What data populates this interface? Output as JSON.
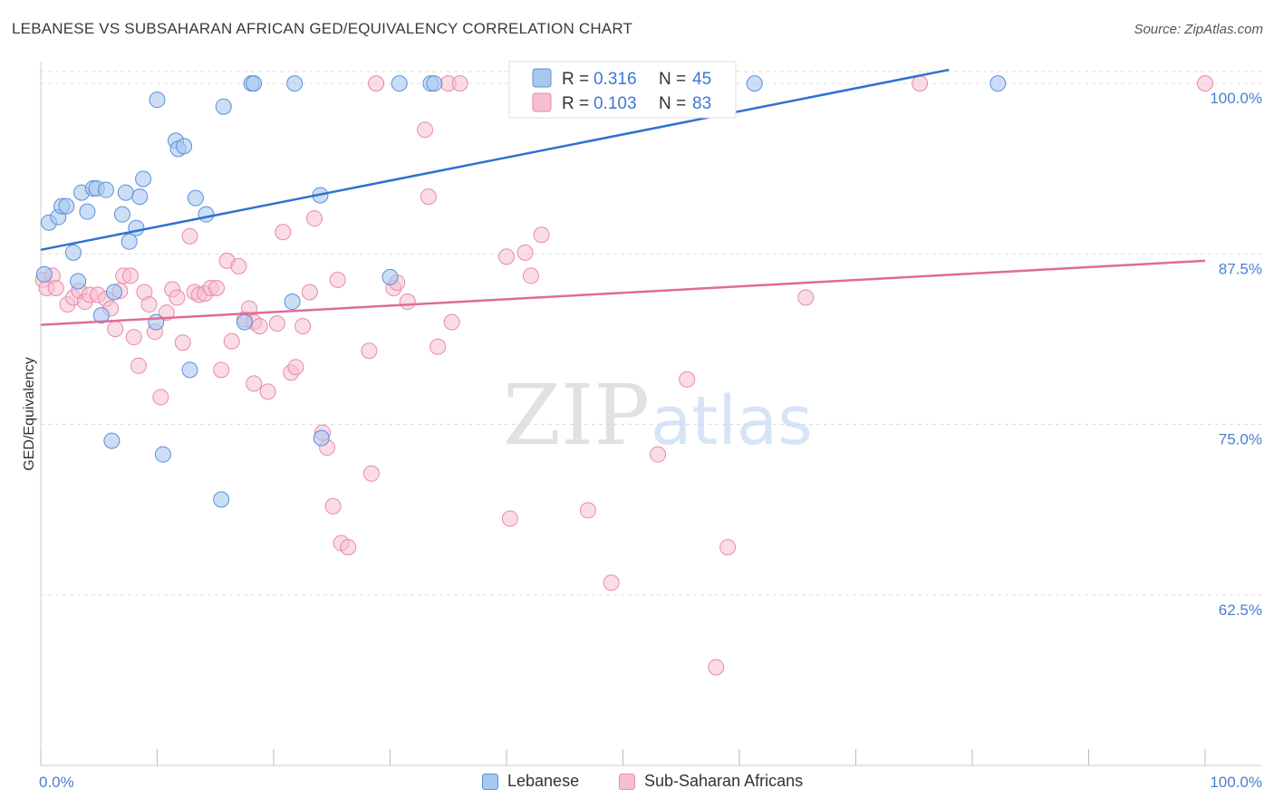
{
  "title": "LEBANESE VS SUBSAHARAN AFRICAN GED/EQUIVALENCY CORRELATION CHART",
  "source": "Source: ZipAtlas.com",
  "watermark": {
    "zip": "ZIP",
    "atlas": "atlas"
  },
  "colors": {
    "blue_fill": "#a9c8f0",
    "blue_stroke": "#5b8fd8",
    "blue_line": "#2f72d1",
    "pink_fill": "#f6bfd1",
    "pink_stroke": "#e88aa9",
    "pink_line": "#e06b97",
    "axis_label": "#4a7fd0",
    "grid": "#dddddd"
  },
  "legend_stats": [
    {
      "r_label": "R =",
      "r_value": "0.316",
      "n_label": "N =",
      "n_value": "45"
    },
    {
      "r_label": "R =",
      "r_value": "0.103",
      "n_label": "N =",
      "n_value": "83"
    }
  ],
  "chart_data": {
    "type": "scatter",
    "title": "LEBANESE VS SUBSAHARAN AFRICAN GED/EQUIVALENCY CORRELATION CHART",
    "xlabel": "",
    "ylabel": "GED/Equivalency",
    "xlim": [
      0,
      100
    ],
    "ylim": [
      50,
      102
    ],
    "x_tick_labels": [
      "0.0%",
      "100.0%"
    ],
    "y_ticks": [
      62.5,
      75.0,
      87.5,
      100.0
    ],
    "y_tick_labels": [
      "62.5%",
      "75.0%",
      "87.5%",
      "100.0%"
    ],
    "grid": "horizontal dashed",
    "legend_position": "top-center",
    "series": [
      {
        "name": "Lebanese",
        "color": "#a9c8f0",
        "trend": {
          "x": [
            0,
            78
          ],
          "y": [
            87.8,
            101
          ]
        },
        "points": [
          [
            0.3,
            86.0
          ],
          [
            0.7,
            89.8
          ],
          [
            1.5,
            90.2
          ],
          [
            1.8,
            91.0
          ],
          [
            2.2,
            91.0
          ],
          [
            2.8,
            87.6
          ],
          [
            3.2,
            85.5
          ],
          [
            3.5,
            92.0
          ],
          [
            4.0,
            90.6
          ],
          [
            4.5,
            92.3
          ],
          [
            4.8,
            92.3
          ],
          [
            5.6,
            92.2
          ],
          [
            5.2,
            83.0
          ],
          [
            6.3,
            84.7
          ],
          [
            7.0,
            90.4
          ],
          [
            7.3,
            92.0
          ],
          [
            7.6,
            88.4
          ],
          [
            8.2,
            89.4
          ],
          [
            8.5,
            91.7
          ],
          [
            8.8,
            93.0
          ],
          [
            9.9,
            82.5
          ],
          [
            10.0,
            98.8
          ],
          [
            10.5,
            72.8
          ],
          [
            11.6,
            95.8
          ],
          [
            11.8,
            95.2
          ],
          [
            12.3,
            95.4
          ],
          [
            12.8,
            79.0
          ],
          [
            13.3,
            91.6
          ],
          [
            14.2,
            90.4
          ],
          [
            15.5,
            69.5
          ],
          [
            15.7,
            98.3
          ],
          [
            17.5,
            82.5
          ],
          [
            18.1,
            100.0
          ],
          [
            18.3,
            100.0
          ],
          [
            21.6,
            84.0
          ],
          [
            21.8,
            100.0
          ],
          [
            24.0,
            91.8
          ],
          [
            24.1,
            74.0
          ],
          [
            30.0,
            85.8
          ],
          [
            30.8,
            100.0
          ],
          [
            33.5,
            100.0
          ],
          [
            33.8,
            100.0
          ],
          [
            6.1,
            73.8
          ],
          [
            61.3,
            100.0
          ],
          [
            82.2,
            100.0
          ]
        ]
      },
      {
        "name": "Sub-Saharan Africans",
        "color": "#f6bfd1",
        "trend": {
          "x": [
            0,
            100
          ],
          "y": [
            82.3,
            87.0
          ]
        },
        "points": [
          [
            0.2,
            85.6
          ],
          [
            0.5,
            85.0
          ],
          [
            1.0,
            85.9
          ],
          [
            1.3,
            85.0
          ],
          [
            2.3,
            83.8
          ],
          [
            2.8,
            84.3
          ],
          [
            3.3,
            84.8
          ],
          [
            3.8,
            84.0
          ],
          [
            4.2,
            84.5
          ],
          [
            4.9,
            84.5
          ],
          [
            5.6,
            84.2
          ],
          [
            6.0,
            83.5
          ],
          [
            6.4,
            82.0
          ],
          [
            6.8,
            84.8
          ],
          [
            7.1,
            85.9
          ],
          [
            7.7,
            85.9
          ],
          [
            8.0,
            81.4
          ],
          [
            8.4,
            79.3
          ],
          [
            8.9,
            84.7
          ],
          [
            9.3,
            83.8
          ],
          [
            9.8,
            81.8
          ],
          [
            10.3,
            77.0
          ],
          [
            10.8,
            83.2
          ],
          [
            11.3,
            84.9
          ],
          [
            11.7,
            84.3
          ],
          [
            12.2,
            81.0
          ],
          [
            12.8,
            88.8
          ],
          [
            13.2,
            84.7
          ],
          [
            13.6,
            84.5
          ],
          [
            14.1,
            84.6
          ],
          [
            14.6,
            85.0
          ],
          [
            15.1,
            85.0
          ],
          [
            15.5,
            79.0
          ],
          [
            16.0,
            87.0
          ],
          [
            16.4,
            81.1
          ],
          [
            17.0,
            86.6
          ],
          [
            17.5,
            82.7
          ],
          [
            17.9,
            83.5
          ],
          [
            18.3,
            82.5
          ],
          [
            18.8,
            82.2
          ],
          [
            18.3,
            78.0
          ],
          [
            19.5,
            77.4
          ],
          [
            20.3,
            82.4
          ],
          [
            20.8,
            89.1
          ],
          [
            21.5,
            78.8
          ],
          [
            21.9,
            79.2
          ],
          [
            22.5,
            82.2
          ],
          [
            23.1,
            84.7
          ],
          [
            23.5,
            90.1
          ],
          [
            24.2,
            74.4
          ],
          [
            24.6,
            73.3
          ],
          [
            25.1,
            69.0
          ],
          [
            25.5,
            85.6
          ],
          [
            25.8,
            66.3
          ],
          [
            26.4,
            66.0
          ],
          [
            28.2,
            80.4
          ],
          [
            28.4,
            71.4
          ],
          [
            28.8,
            100.0
          ],
          [
            30.3,
            85.0
          ],
          [
            30.6,
            85.4
          ],
          [
            31.5,
            84.0
          ],
          [
            33.0,
            96.6
          ],
          [
            33.3,
            91.7
          ],
          [
            34.1,
            80.7
          ],
          [
            35.0,
            100.0
          ],
          [
            35.3,
            82.5
          ],
          [
            36.0,
            100.0
          ],
          [
            40.0,
            87.3
          ],
          [
            40.3,
            68.1
          ],
          [
            41.6,
            87.6
          ],
          [
            42.1,
            85.9
          ],
          [
            43.0,
            88.9
          ],
          [
            43.8,
            100.0
          ],
          [
            47.0,
            68.7
          ],
          [
            49.0,
            63.4
          ],
          [
            53.0,
            72.8
          ],
          [
            55.5,
            100.0
          ],
          [
            55.5,
            78.3
          ],
          [
            58.0,
            57.2
          ],
          [
            59.0,
            66.0
          ],
          [
            65.7,
            84.3
          ],
          [
            75.5,
            100.0
          ],
          [
            100.0,
            100.0
          ]
        ]
      }
    ]
  }
}
